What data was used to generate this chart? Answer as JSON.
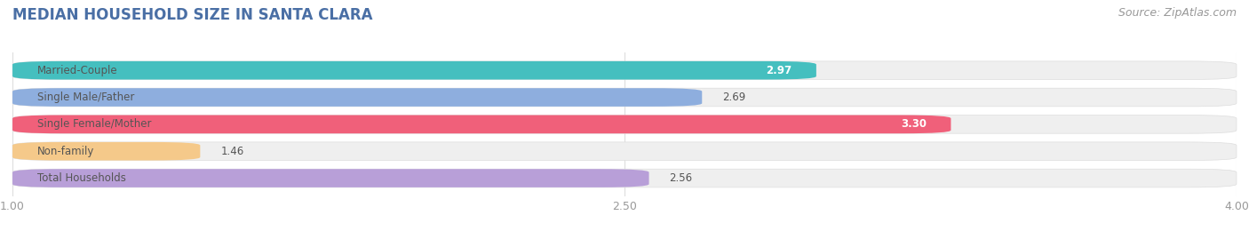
{
  "title": "MEDIAN HOUSEHOLD SIZE IN SANTA CLARA",
  "source": "Source: ZipAtlas.com",
  "categories": [
    "Married-Couple",
    "Single Male/Father",
    "Single Female/Mother",
    "Non-family",
    "Total Households"
  ],
  "values": [
    2.97,
    2.69,
    3.3,
    1.46,
    2.56
  ],
  "bar_colors": [
    "#45bfbf",
    "#8eaede",
    "#f0607a",
    "#f5c98a",
    "#b89fd8"
  ],
  "bar_bg_colors": [
    "#eeeeee",
    "#eeeeee",
    "#eeeeee",
    "#eeeeee",
    "#eeeeee"
  ],
  "xlim": [
    1.0,
    4.0
  ],
  "xticks": [
    1.0,
    2.5,
    4.0
  ],
  "xtick_labels": [
    "1.00",
    "2.50",
    "4.00"
  ],
  "value_inside": [
    true,
    false,
    true,
    false,
    false
  ],
  "figsize": [
    14.06,
    2.69
  ],
  "dpi": 100,
  "title_fontsize": 12,
  "label_fontsize": 8.5,
  "value_fontsize": 8.5,
  "tick_fontsize": 9,
  "source_fontsize": 9,
  "bar_height": 0.68,
  "bar_gap": 0.32,
  "fig_bg": "#ffffff",
  "bar_bg": "#efefef",
  "title_color": "#4a6fa5",
  "label_color": "#555555",
  "value_color_outside": "#555555",
  "value_color_inside": "#ffffff",
  "tick_color": "#999999",
  "separator_color": "#ffffff",
  "grid_color": "#dddddd"
}
